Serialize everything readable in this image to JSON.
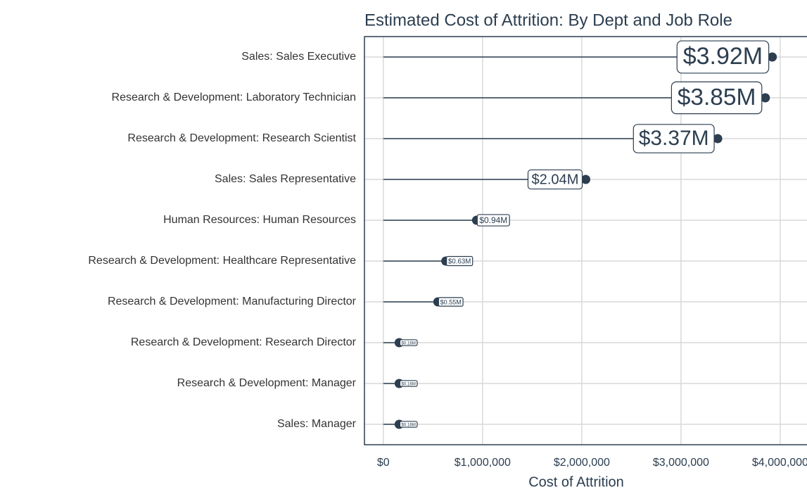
{
  "chart_data": {
    "type": "lollipop",
    "title": "Estimated Cost of Attrition: By Dept and Job Role",
    "x_label": "Cost of Attrition",
    "categories": [
      "Sales: Sales Executive",
      "Research & Development: Laboratory Technician",
      "Research & Development: Research Scientist",
      "Sales: Sales Representative",
      "Human Resources: Human Resources",
      "Research & Development: Healthcare Representative",
      "Research & Development: Manufacturing Director",
      "Research & Development: Research Director",
      "Research & Development: Manager",
      "Sales: Manager"
    ],
    "values": [
      3920000,
      3850000,
      3370000,
      2040000,
      940000,
      630000,
      550000,
      160000,
      160000,
      160000
    ],
    "value_labels": [
      "$3.92M",
      "$3.85M",
      "$3.37M",
      "$2.04M",
      "$0.94M",
      "$0.63M",
      "$0.55M",
      "$0.16M",
      "$0.16M",
      "$0.16M"
    ],
    "color": "#2c3e50",
    "xlim": [
      -190000,
      4270000
    ],
    "xticks": [
      {
        "value": 0,
        "label": "$0"
      },
      {
        "value": 1000000,
        "label": "$1,000,000"
      },
      {
        "value": 2000000,
        "label": "$2,000,000"
      },
      {
        "value": 3000000,
        "label": "$3,000,000"
      },
      {
        "value": 4000000,
        "label": "$4,000,000"
      }
    ],
    "grid": true
  }
}
